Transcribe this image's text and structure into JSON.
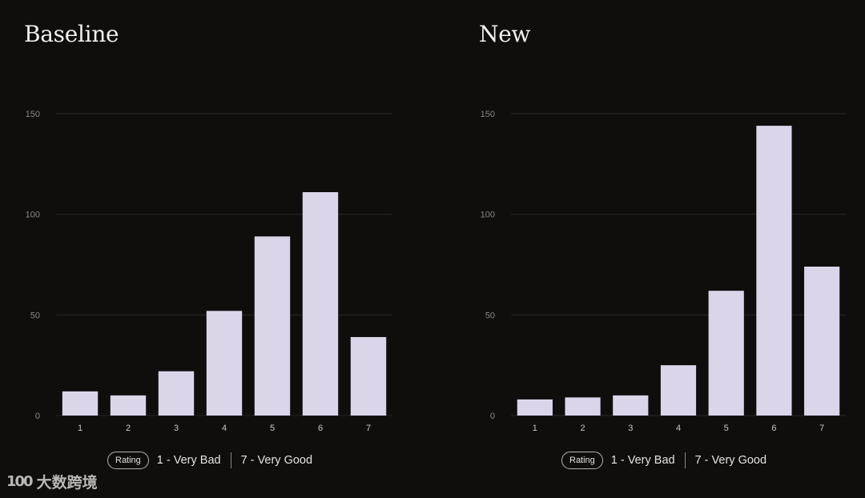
{
  "panels": [
    {
      "title": "Baseline"
    },
    {
      "title": "New"
    }
  ],
  "legend": {
    "pill": "Rating",
    "low": "1 - Very Bad",
    "high": "7 - Very Good"
  },
  "watermark": {
    "icon_text": "100",
    "text": "大数跨境"
  },
  "colors": {
    "background": "#0f0e0d",
    "bar": "#dcd5ea",
    "grid": "#2a2826"
  },
  "chart_data": [
    {
      "type": "bar",
      "title": "Baseline",
      "categories": [
        "1",
        "2",
        "3",
        "4",
        "5",
        "6",
        "7"
      ],
      "values": [
        12,
        10,
        22,
        52,
        89,
        111,
        39
      ],
      "yticks": [
        "0",
        "50",
        "100",
        "150"
      ],
      "ylim": [
        0,
        150
      ],
      "grid": true,
      "legend_position": "bottom"
    },
    {
      "type": "bar",
      "title": "New",
      "categories": [
        "1",
        "2",
        "3",
        "4",
        "5",
        "6",
        "7"
      ],
      "values": [
        8,
        9,
        10,
        25,
        62,
        144,
        74
      ],
      "yticks": [
        "0",
        "50",
        "100",
        "150"
      ],
      "ylim": [
        0,
        150
      ],
      "grid": true,
      "legend_position": "bottom"
    }
  ]
}
